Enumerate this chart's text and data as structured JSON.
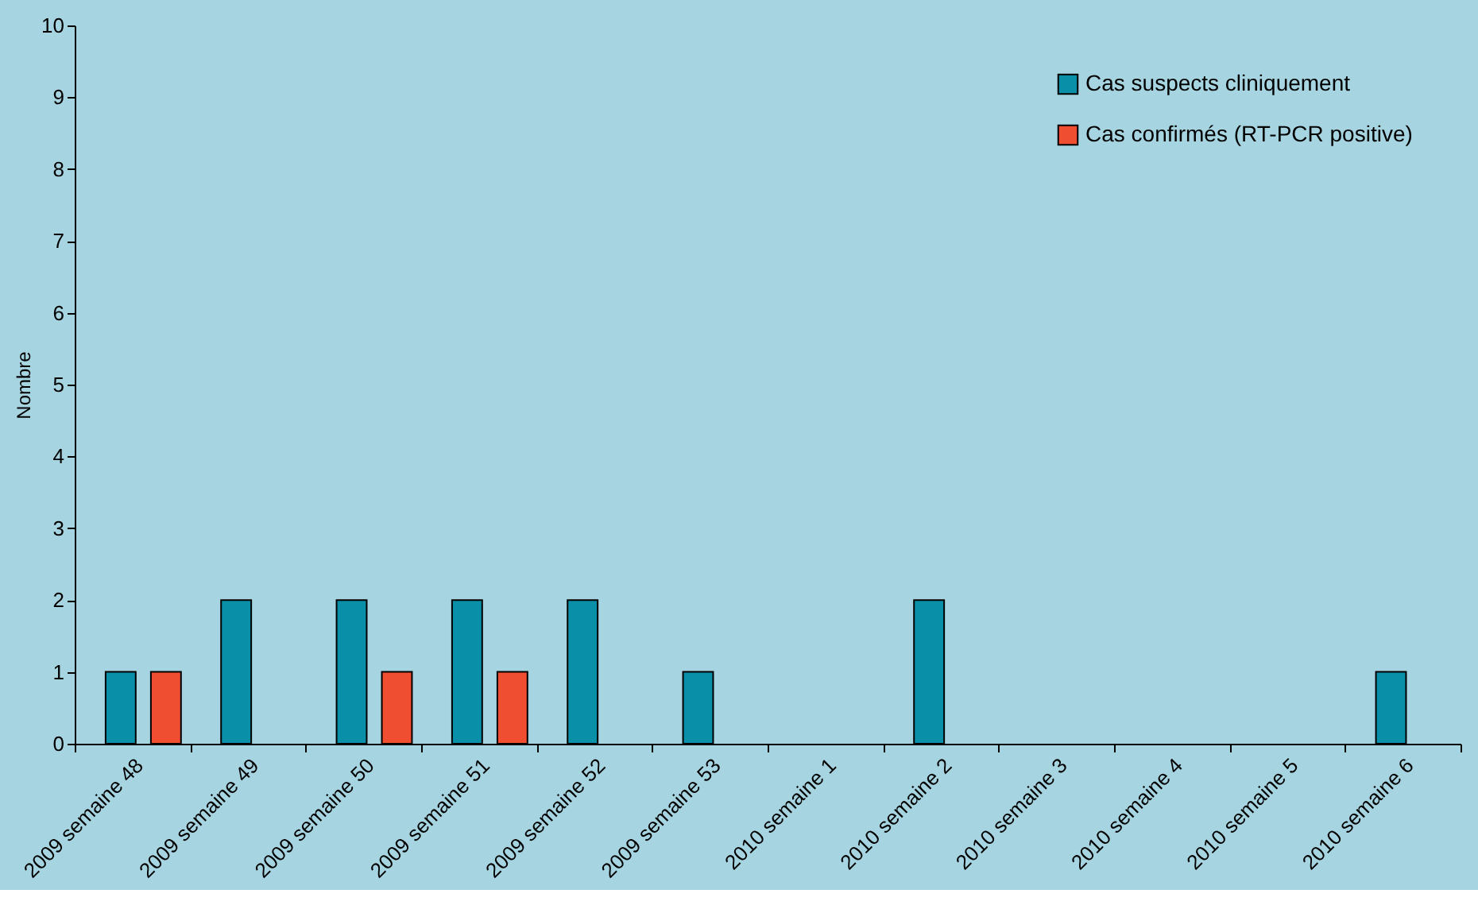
{
  "chart_data": {
    "type": "bar",
    "ylabel": "Nombre",
    "categories": [
      "2009 semaine 48",
      "2009 semaine 49",
      "2009 semaine 50",
      "2009 semaine 51",
      "2009 semaine 52",
      "2009 semaine 53",
      "2010 semaine 1",
      "2010 semaine 2",
      "2010 semaine 3",
      "2010 semaine 4",
      "2010 semaine 5",
      "2010 semaine 6"
    ],
    "series": [
      {
        "name": "Cas suspects cliniquement",
        "color": "#0a8fa8",
        "values": [
          1,
          2,
          2,
          2,
          2,
          1,
          0,
          2,
          0,
          0,
          0,
          1
        ]
      },
      {
        "name": "Cas confirmés (RT-PCR positive)",
        "color": "#f04e30",
        "values": [
          1,
          0,
          1,
          1,
          0,
          0,
          0,
          0,
          0,
          0,
          0,
          0
        ]
      }
    ],
    "ylim": [
      0,
      10
    ],
    "yticks": [
      0,
      1,
      2,
      3,
      4,
      5,
      6,
      7,
      8,
      9,
      10
    ],
    "grid": false,
    "legend": "top right"
  }
}
